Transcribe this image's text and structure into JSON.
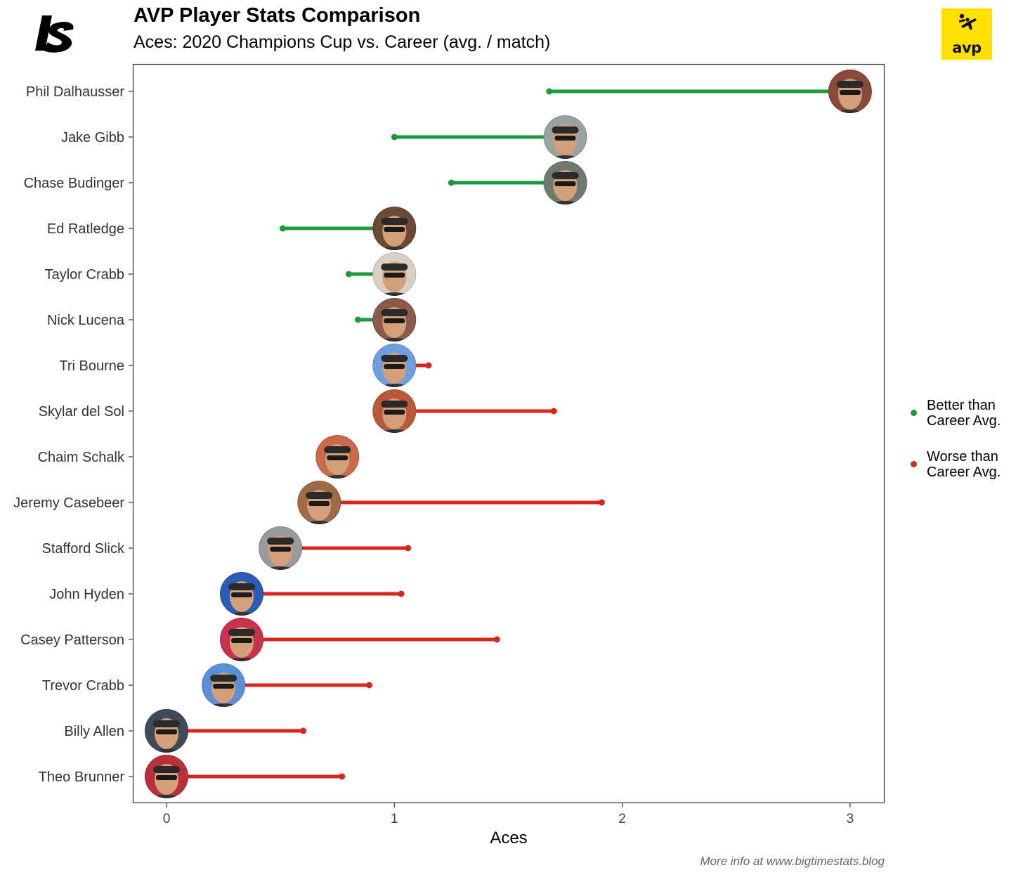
{
  "header": {
    "title": "AVP Player Stats Comparison",
    "subtitle": "Aces: 2020 Champions Cup vs. Career (avg. / match)"
  },
  "logos": {
    "brand_icon": "bigtimestats-logo",
    "avp_label": "avp",
    "avp_color": "#FFE000"
  },
  "footer": {
    "note": "More info at www.bigtimestats.blog"
  },
  "legend": {
    "better_label": "Better than\nCareer Avg.",
    "worse_label": "Worse than\nCareer Avg.",
    "better_color": "#1B9A3A",
    "worse_color": "#D7261E"
  },
  "chart_data": {
    "type": "dumbbell",
    "title": "AVP Player Stats Comparison",
    "subtitle": "Aces: 2020 Champions Cup vs. Career (avg. / match)",
    "xlabel": "Aces",
    "ylabel": "",
    "xlim": [
      -0.15,
      3.15
    ],
    "xticks": [
      0,
      1,
      2,
      3
    ],
    "grid": false,
    "legend_position": "right",
    "series_meaning": {
      "cup": "2020 Champions Cup avg. / match (shown by player photo)",
      "career": "Career avg. / match (shown by dot)"
    },
    "players": [
      {
        "name": "Phil Dalhausser",
        "cup": 3.0,
        "career": 1.68,
        "status": "better",
        "photo_color": "#8a4a3a"
      },
      {
        "name": "Jake Gibb",
        "cup": 1.75,
        "career": 1.0,
        "status": "better",
        "photo_color": "#9aa3a0"
      },
      {
        "name": "Chase Budinger",
        "cup": 1.75,
        "career": 1.25,
        "status": "better",
        "photo_color": "#6f7a6f"
      },
      {
        "name": "Ed Ratledge",
        "cup": 1.0,
        "career": 0.51,
        "status": "better",
        "photo_color": "#6b4a35"
      },
      {
        "name": "Taylor Crabb",
        "cup": 1.0,
        "career": 0.8,
        "status": "better",
        "photo_color": "#d9cfc4"
      },
      {
        "name": "Nick Lucena",
        "cup": 1.0,
        "career": 0.84,
        "status": "better",
        "photo_color": "#8a5b4a"
      },
      {
        "name": "Tri Bourne",
        "cup": 1.0,
        "career": 1.15,
        "status": "worse",
        "photo_color": "#6f9fe0"
      },
      {
        "name": "Skylar del Sol",
        "cup": 1.0,
        "career": 1.7,
        "status": "worse",
        "photo_color": "#b85a3a"
      },
      {
        "name": "Chaim Schalk",
        "cup": 0.75,
        "career": 0.75,
        "status": "worse",
        "photo_color": "#c96a4a"
      },
      {
        "name": "Jeremy Casebeer",
        "cup": 0.67,
        "career": 1.91,
        "status": "worse",
        "photo_color": "#a06a45"
      },
      {
        "name": "Stafford Slick",
        "cup": 0.5,
        "career": 1.06,
        "status": "worse",
        "photo_color": "#9a9a9a"
      },
      {
        "name": "John Hyden",
        "cup": 0.33,
        "career": 1.03,
        "status": "worse",
        "photo_color": "#2a5bb5"
      },
      {
        "name": "Casey Patterson",
        "cup": 0.33,
        "career": 1.45,
        "status": "worse",
        "photo_color": "#c8324a"
      },
      {
        "name": "Trevor Crabb",
        "cup": 0.25,
        "career": 0.89,
        "status": "worse",
        "photo_color": "#5b8fd6"
      },
      {
        "name": "Billy Allen",
        "cup": 0.0,
        "career": 0.6,
        "status": "worse",
        "photo_color": "#3e4a55"
      },
      {
        "name": "Theo Brunner",
        "cup": 0.0,
        "career": 0.77,
        "status": "worse",
        "photo_color": "#b8303a"
      }
    ]
  }
}
